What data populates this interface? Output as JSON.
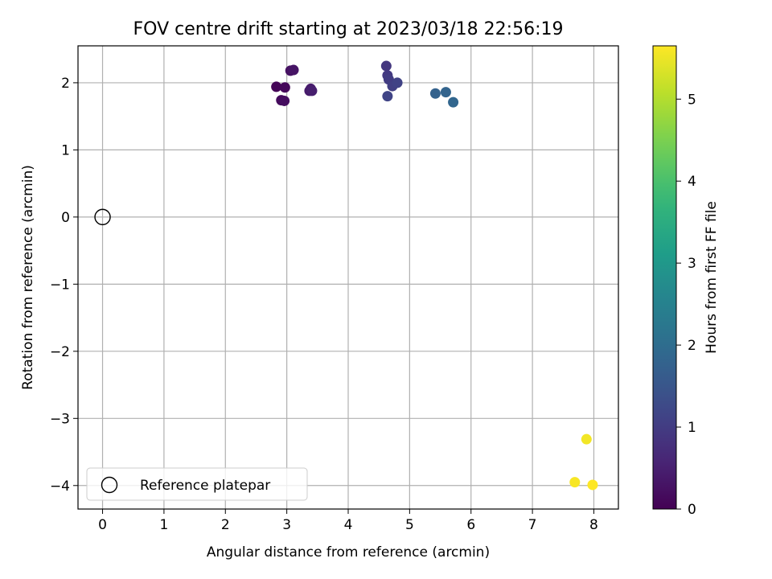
{
  "chart_data": {
    "type": "scatter",
    "title": "FOV centre drift starting at 2023/03/18 22:56:19",
    "xlabel": "Angular distance from reference (arcmin)",
    "ylabel": "Rotation from reference (arcmin)",
    "xlim": [
      -0.4,
      8.4
    ],
    "ylim": [
      -4.35,
      2.55
    ],
    "xticks": [
      0,
      1,
      2,
      3,
      4,
      5,
      6,
      7,
      8
    ],
    "yticks": [
      -4,
      -3,
      -2,
      -1,
      0,
      1,
      2
    ],
    "grid": true,
    "legend": {
      "position": "lower-left",
      "entries": [
        "Reference platepar"
      ]
    },
    "reference": {
      "x": 0,
      "y": 0,
      "label": "Reference platepar"
    },
    "colorbar": {
      "label": "Hours from first FF file",
      "min": 0,
      "max": 5.65,
      "ticks": [
        0,
        1,
        2,
        3,
        4,
        5
      ],
      "colormap": "viridis"
    },
    "points": [
      {
        "x": 2.83,
        "y": 1.94,
        "c": 0.05
      },
      {
        "x": 2.97,
        "y": 1.93,
        "c": 0.1
      },
      {
        "x": 2.91,
        "y": 1.74,
        "c": 0.15
      },
      {
        "x": 2.96,
        "y": 1.73,
        "c": 0.2
      },
      {
        "x": 3.06,
        "y": 2.18,
        "c": 0.25
      },
      {
        "x": 3.11,
        "y": 2.19,
        "c": 0.3
      },
      {
        "x": 3.37,
        "y": 1.88,
        "c": 0.38
      },
      {
        "x": 3.39,
        "y": 1.91,
        "c": 0.42
      },
      {
        "x": 3.41,
        "y": 1.88,
        "c": 0.46
      },
      {
        "x": 4.62,
        "y": 2.25,
        "c": 0.9
      },
      {
        "x": 4.64,
        "y": 2.11,
        "c": 0.95
      },
      {
        "x": 4.66,
        "y": 2.05,
        "c": 1.0
      },
      {
        "x": 4.72,
        "y": 1.95,
        "c": 1.05
      },
      {
        "x": 4.8,
        "y": 2.0,
        "c": 1.1
      },
      {
        "x": 4.64,
        "y": 1.8,
        "c": 1.15
      },
      {
        "x": 5.42,
        "y": 1.84,
        "c": 1.75
      },
      {
        "x": 5.59,
        "y": 1.86,
        "c": 1.8
      },
      {
        "x": 5.71,
        "y": 1.71,
        "c": 1.85
      },
      {
        "x": 7.88,
        "y": -3.31,
        "c": 5.55
      },
      {
        "x": 7.69,
        "y": -3.95,
        "c": 5.6
      },
      {
        "x": 7.98,
        "y": -3.99,
        "c": 5.65
      }
    ]
  }
}
